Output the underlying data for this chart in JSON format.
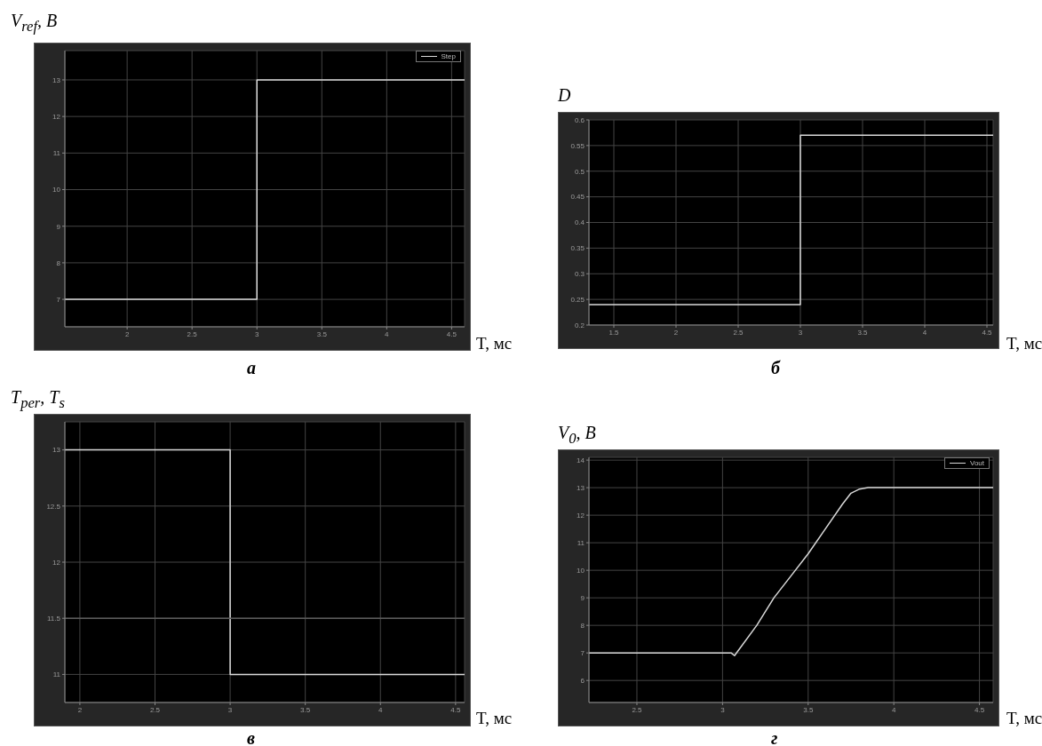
{
  "chart_data": [
    {
      "type": "step",
      "ylabel": "V$_{ref}$, В",
      "xlabel": "T, мс",
      "annotations": [
        "а"
      ],
      "x": [
        1.52,
        3,
        4.6
      ],
      "xlim": [
        1.52,
        4.6
      ],
      "xticks": [
        2,
        2.5,
        3,
        3.5,
        4,
        4.5
      ],
      "ylim": [
        6.25,
        13.8
      ],
      "yticks": [
        7,
        8,
        9,
        10,
        11,
        12,
        13
      ],
      "grid": true,
      "legend": "top right",
      "series": [
        {
          "name": "Step",
          "color": "#d9d9d9",
          "values": [
            7,
            13,
            13
          ]
        }
      ]
    },
    {
      "type": "step",
      "ylabel": "D",
      "xlabel": "T, мс",
      "annotations": [
        "б"
      ],
      "x": [
        1.3,
        3,
        4.55
      ],
      "xlim": [
        1.3,
        4.55
      ],
      "xticks": [
        1.5,
        2,
        2.5,
        3,
        3.5,
        4,
        4.5
      ],
      "ylim": [
        0.2,
        0.6
      ],
      "yticks": [
        0.2,
        0.25,
        0.3,
        0.35,
        0.4,
        0.45,
        0.5,
        0.55,
        0.6
      ],
      "grid": true,
      "series": [
        {
          "color": "#d9d9d9",
          "values": [
            0.24,
            0.57,
            0.57
          ]
        }
      ]
    },
    {
      "type": "step",
      "ylabel": "T$_{per}$, T$_{s}$",
      "xlabel": "T, мс",
      "annotations": [
        "в"
      ],
      "x": [
        1.9,
        3,
        4.56
      ],
      "xlim": [
        1.9,
        4.56
      ],
      "xticks": [
        2,
        2.5,
        3,
        3.5,
        4,
        4.5
      ],
      "ylim": [
        10.75,
        13.25
      ],
      "yticks": [
        11,
        11.5,
        12,
        12.5,
        13
      ],
      "grid": true,
      "series": [
        {
          "color": "#d9d9d9",
          "values": [
            13,
            11,
            11
          ]
        },
        {
          "color": "#5a5a5a",
          "values": [
            11.5,
            11.5,
            11.5
          ]
        }
      ]
    },
    {
      "type": "line",
      "ylabel": "V$_{0}$, В",
      "xlabel": "T, мс",
      "annotations": [
        "г"
      ],
      "x": [
        2.22,
        3.05,
        3.07,
        3.2,
        3.3,
        3.4,
        3.5,
        3.6,
        3.7,
        3.75,
        3.8,
        3.85,
        4.58
      ],
      "xlim": [
        2.22,
        4.58
      ],
      "xticks": [
        2.5,
        3,
        3.5,
        4,
        4.5
      ],
      "ylim": [
        5.2,
        14.1
      ],
      "yticks": [
        6,
        7,
        8,
        9,
        10,
        11,
        12,
        13,
        14
      ],
      "grid": true,
      "legend": "top right",
      "series": [
        {
          "name": "Vout",
          "color": "#d9d9d9",
          "values": [
            7,
            7,
            6.9,
            8.0,
            9.0,
            9.8,
            10.6,
            11.5,
            12.4,
            12.8,
            12.95,
            13,
            13
          ]
        }
      ]
    }
  ]
}
